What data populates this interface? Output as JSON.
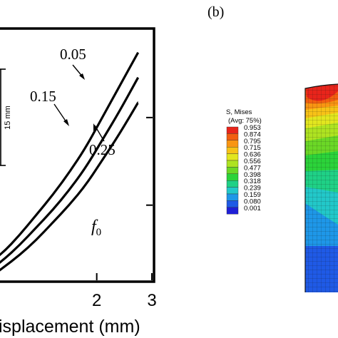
{
  "panel_b_label": "(b)",
  "chart_data": [
    {
      "type": "line",
      "xlabel": "isplacement (mm)",
      "xticks": [
        "2",
        "3"
      ],
      "xlim": [
        0.0,
        3.0
      ],
      "ylim": [
        0.0,
        1.0
      ],
      "yticks": [
        0.3,
        0.65
      ],
      "series": [
        {
          "name": "0.05",
          "x": [
            0.0,
            0.3,
            0.6,
            0.9,
            1.2,
            1.5,
            1.8,
            2.1,
            2.4,
            2.75
          ],
          "values": [
            0.06,
            0.11,
            0.18,
            0.26,
            0.34,
            0.43,
            0.53,
            0.65,
            0.77,
            0.91
          ]
        },
        {
          "name": "0.15",
          "x": [
            0.0,
            0.3,
            0.6,
            0.9,
            1.2,
            1.5,
            1.8,
            2.1,
            2.4,
            2.75
          ],
          "values": [
            0.03,
            0.08,
            0.14,
            0.21,
            0.28,
            0.36,
            0.45,
            0.56,
            0.67,
            0.81
          ]
        },
        {
          "name": "0.25",
          "x": [
            0.0,
            0.3,
            0.6,
            0.9,
            1.2,
            1.5,
            1.8,
            2.1,
            2.4,
            2.75
          ],
          "values": [
            0.0,
            0.05,
            0.1,
            0.16,
            0.23,
            0.3,
            0.38,
            0.48,
            0.58,
            0.71
          ]
        }
      ],
      "annotations": {
        "f0_symbol": "f",
        "f0_subscript": "0",
        "dimension_label": "15 mm"
      }
    },
    {
      "type": "heatmap",
      "legend_title_1": "S, Mises",
      "legend_title_2": "(Avg: 75%)",
      "contour_values": [
        "0.953",
        "0.874",
        "0.795",
        "0.715",
        "0.636",
        "0.556",
        "0.477",
        "0.398",
        "0.318",
        "0.239",
        "0.159",
        "0.080",
        "0.001"
      ],
      "contour_colors": [
        "#e8241b",
        "#f25e10",
        "#f99512",
        "#f7c217",
        "#e2e61f",
        "#aee321",
        "#6bd826",
        "#2bd33a",
        "#1fd186",
        "#22c8c9",
        "#1e97e8",
        "#1e5ae6",
        "#1f1fd6"
      ]
    }
  ]
}
